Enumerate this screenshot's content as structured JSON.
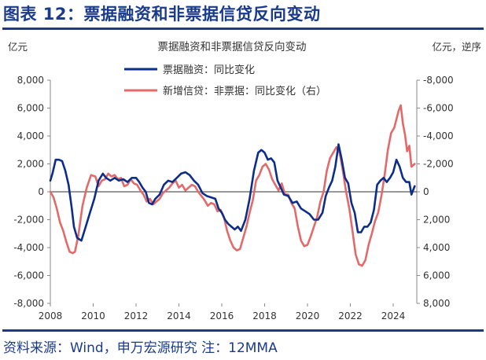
{
  "figure_title": "图表 12：票据融资和非票据信贷反向变动",
  "source_note": "资料来源：Wind，申万宏源研究  注：12MMA",
  "colors": {
    "brand": "#1a3b8c",
    "series_navy": "#0d2d8a",
    "series_red": "#e26a6a",
    "zero_line": "#333333",
    "axis": "#888888"
  },
  "chart_data": {
    "type": "line",
    "title": "票据融资和非票据信贷反向变动",
    "left_unit": "亿元",
    "right_unit": "亿元，逆序",
    "xlim": [
      2008.0,
      2025.1
    ],
    "ylim_left": [
      -8000,
      8000
    ],
    "ylim_right": [
      8000,
      -8000
    ],
    "x_tick_values": [
      2008,
      2010,
      2012,
      2014,
      2016,
      2018,
      2020,
      2022,
      2024
    ],
    "x_tick_labels": [
      "2008",
      "2010",
      "2012",
      "2014",
      "2016",
      "2018",
      "2020",
      "2022",
      "2024"
    ],
    "left_tick_values": [
      8000,
      6000,
      4000,
      2000,
      0,
      -2000,
      -4000,
      -6000,
      -8000
    ],
    "left_tick_labels": [
      "8,000",
      "6,000",
      "4,000",
      "2,000",
      "0",
      "-2,000",
      "-4,000",
      "-6,000",
      "-8,000"
    ],
    "right_tick_values": [
      -8000,
      -6000,
      -4000,
      -2000,
      0,
      2000,
      4000,
      6000,
      8000
    ],
    "right_tick_labels": [
      "-8,000",
      "-6,000",
      "-4,000",
      "-2,000",
      "0",
      "2,000",
      "4,000",
      "6,000",
      "8,000"
    ],
    "legend_position": "top-center",
    "series": [
      {
        "name": "票据融资：同比变化",
        "axis": "left",
        "color": "#0d2d8a",
        "x": [
          2008.0,
          2008.1,
          2008.25,
          2008.4,
          2008.55,
          2008.7,
          2008.85,
          2009.0,
          2009.1,
          2009.25,
          2009.45,
          2009.65,
          2009.85,
          2010.05,
          2010.25,
          2010.45,
          2010.6,
          2010.8,
          2011.0,
          2011.2,
          2011.4,
          2011.6,
          2011.8,
          2012.0,
          2012.15,
          2012.3,
          2012.45,
          2012.6,
          2012.75,
          2012.9,
          2013.1,
          2013.3,
          2013.5,
          2013.7,
          2013.9,
          2014.1,
          2014.3,
          2014.5,
          2014.7,
          2014.9,
          2015.1,
          2015.3,
          2015.5,
          2015.7,
          2015.85,
          2016.0,
          2016.15,
          2016.3,
          2016.45,
          2016.6,
          2016.75,
          2016.9,
          2017.1,
          2017.3,
          2017.5,
          2017.7,
          2017.85,
          2018.0,
          2018.15,
          2018.3,
          2018.45,
          2018.6,
          2018.75,
          2018.9,
          2019.1,
          2019.3,
          2019.5,
          2019.7,
          2019.9,
          2020.1,
          2020.3,
          2020.5,
          2020.7,
          2020.85,
          2021.0,
          2021.15,
          2021.3,
          2021.45,
          2021.6,
          2021.75,
          2021.9,
          2022.05,
          2022.2,
          2022.35,
          2022.5,
          2022.65,
          2022.8,
          2022.95,
          2023.1,
          2023.25,
          2023.4,
          2023.55,
          2023.7,
          2023.85,
          2024.0,
          2024.15,
          2024.3,
          2024.45,
          2024.6,
          2024.75,
          2024.85,
          2025.0
        ],
        "values": [
          800,
          1300,
          2300,
          2300,
          2200,
          1500,
          500,
          -1200,
          -2500,
          -3300,
          -3500,
          -2500,
          -1500,
          -500,
          800,
          1300,
          1000,
          800,
          1000,
          800,
          900,
          700,
          1000,
          1000,
          700,
          300,
          0,
          -800,
          -900,
          -500,
          -200,
          500,
          800,
          700,
          1000,
          1300,
          1400,
          1200,
          800,
          500,
          -100,
          -300,
          -400,
          -500,
          -1200,
          -1500,
          -2000,
          -2300,
          -2500,
          -2700,
          -2500,
          -2800,
          -2000,
          -500,
          1500,
          2800,
          3000,
          2800,
          2300,
          2400,
          2100,
          800,
          300,
          -200,
          -300,
          -800,
          -700,
          -1200,
          -1400,
          -1600,
          -2000,
          -2000,
          -1500,
          -300,
          300,
          800,
          1800,
          3400,
          2300,
          1000,
          600,
          -800,
          -1500,
          -2900,
          -2900,
          -2500,
          -2500,
          -2200,
          -1300,
          500,
          800,
          1000,
          700,
          1000,
          1400,
          2300,
          1800,
          1000,
          700,
          700,
          -200,
          400
        ]
      },
      {
        "name": "新增信贷：非票据：同比变化（右）",
        "axis": "right",
        "color": "#e26a6a",
        "x": [
          2008.0,
          2008.15,
          2008.3,
          2008.45,
          2008.6,
          2008.75,
          2008.9,
          2009.05,
          2009.15,
          2009.3,
          2009.5,
          2009.7,
          2009.9,
          2010.1,
          2010.25,
          2010.4,
          2010.55,
          2010.7,
          2010.85,
          2011.0,
          2011.15,
          2011.3,
          2011.45,
          2011.6,
          2011.75,
          2011.9,
          2012.05,
          2012.2,
          2012.35,
          2012.5,
          2012.65,
          2012.8,
          2012.95,
          2013.1,
          2013.25,
          2013.4,
          2013.55,
          2013.7,
          2013.85,
          2014.0,
          2014.15,
          2014.3,
          2014.45,
          2014.6,
          2014.75,
          2014.9,
          2015.05,
          2015.2,
          2015.35,
          2015.5,
          2015.65,
          2015.8,
          2015.95,
          2016.1,
          2016.25,
          2016.4,
          2016.55,
          2016.7,
          2016.85,
          2017.0,
          2017.15,
          2017.3,
          2017.45,
          2017.6,
          2017.75,
          2017.9,
          2018.05,
          2018.2,
          2018.35,
          2018.5,
          2018.65,
          2018.8,
          2018.95,
          2019.1,
          2019.25,
          2019.4,
          2019.55,
          2019.7,
          2019.85,
          2020.0,
          2020.15,
          2020.3,
          2020.45,
          2020.6,
          2020.75,
          2020.9,
          2021.05,
          2021.2,
          2021.35,
          2021.5,
          2021.65,
          2021.8,
          2021.95,
          2022.1,
          2022.25,
          2022.4,
          2022.55,
          2022.7,
          2022.85,
          2023.0,
          2023.15,
          2023.3,
          2023.45,
          2023.6,
          2023.75,
          2023.9,
          2024.05,
          2024.15,
          2024.25,
          2024.35,
          2024.45,
          2024.55,
          2024.65,
          2024.75,
          2024.85,
          2025.0
        ],
        "values": [
          0,
          400,
          1200,
          2200,
          2800,
          3600,
          4300,
          4400,
          4300,
          3200,
          1000,
          -300,
          -1200,
          -1100,
          -400,
          -800,
          -900,
          -1300,
          -1100,
          -1200,
          -900,
          -1000,
          -400,
          -500,
          -900,
          -600,
          -500,
          -100,
          200,
          700,
          500,
          900,
          700,
          500,
          100,
          -100,
          -300,
          -600,
          -800,
          -300,
          -500,
          -100,
          -300,
          -500,
          -400,
          0,
          300,
          600,
          1000,
          800,
          900,
          1400,
          1300,
          1800,
          2800,
          3500,
          4000,
          4200,
          4100,
          3300,
          2500,
          1500,
          600,
          -800,
          -1200,
          -1800,
          -2000,
          -1600,
          -900,
          -500,
          -100,
          -600,
          200,
          200,
          800,
          1200,
          2500,
          3500,
          3900,
          3800,
          3200,
          2500,
          1800,
          700,
          0,
          -1500,
          -2400,
          -2800,
          -3200,
          -2800,
          -1500,
          0,
          1200,
          2800,
          4500,
          5200,
          5300,
          4900,
          3800,
          3000,
          2100,
          1500,
          300,
          -1200,
          -3000,
          -4200,
          -4600,
          -5200,
          -5800,
          -6200,
          -4900,
          -4100,
          -2900,
          -3300,
          -1800,
          -2000
        ]
      }
    ]
  }
}
